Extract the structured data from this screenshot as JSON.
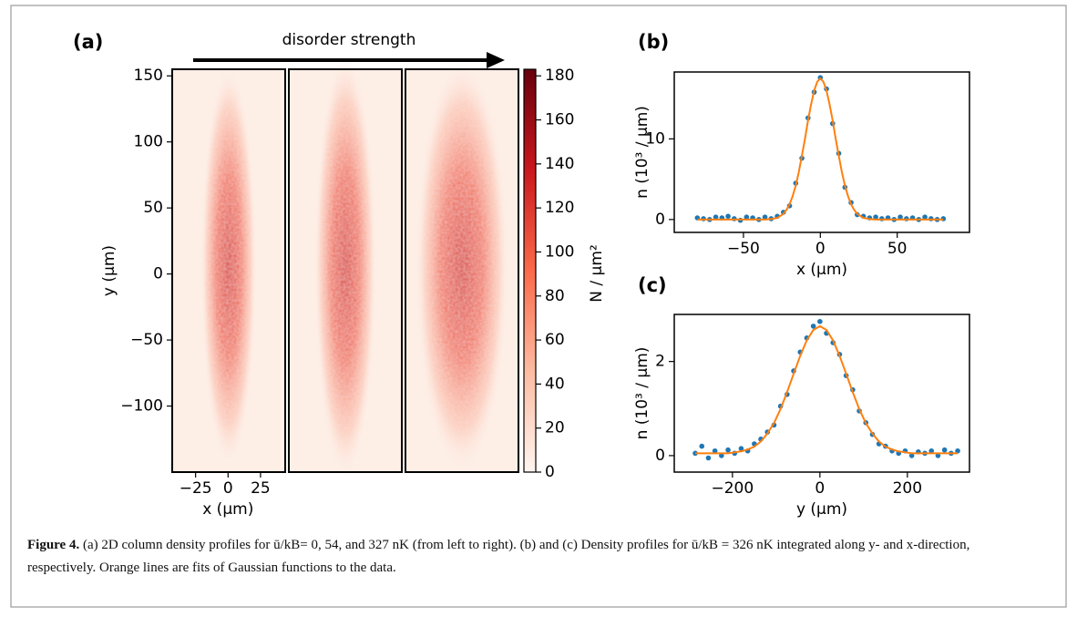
{
  "chart_data": [
    {
      "type": "heatmap",
      "panel_label": "(a)",
      "annotation": "disorder strength",
      "xlabel": "x (µm)",
      "ylabel": "y (µm)",
      "xlim": [
        -43,
        44
      ],
      "xticks": [
        {
          "value": -25,
          "label": "−25"
        },
        0,
        25
      ],
      "ylim": [
        -150,
        155
      ],
      "yticks": [
        150,
        100,
        50,
        0,
        {
          "value": -50,
          "label": "−50"
        },
        {
          "value": -100,
          "label": "−100"
        }
      ],
      "colorbar": {
        "label": "N / µm²",
        "lim": [
          0,
          183
        ],
        "ticks": [
          0,
          20,
          40,
          60,
          80,
          100,
          120,
          140,
          160,
          180
        ],
        "colors": [
          "#fff5f0",
          "#fcbba1",
          "#fb6a4a",
          "#cb181d",
          "#67000d"
        ]
      }
    },
    {
      "type": "scatter",
      "panel_label": "(b)",
      "xlabel": "x (µm)",
      "ylabel": "n (10³ / µm)",
      "xlim": [
        -95,
        97
      ],
      "xticks": [
        {
          "value": -50,
          "label": "−50"
        },
        0,
        50
      ],
      "ylim": [
        -1.6,
        18.3
      ],
      "yticks": [
        0,
        10
      ],
      "series": [
        {
          "style": "points",
          "color": "#1f77b4",
          "x": [
            -80,
            -76,
            -72,
            -68,
            -64,
            -60,
            -56,
            -52,
            -48,
            -44,
            -40,
            -36,
            -32,
            -28,
            -24,
            -20,
            -16,
            -12,
            -8,
            -4,
            0,
            4,
            8,
            12,
            16,
            20,
            24,
            28,
            32,
            36,
            40,
            44,
            48,
            52,
            56,
            60,
            64,
            68,
            72,
            76,
            80
          ],
          "values": [
            0.2,
            0.1,
            0.0,
            0.3,
            0.2,
            0.4,
            0.1,
            -0.1,
            0.3,
            0.2,
            0.0,
            0.3,
            0.1,
            0.4,
            0.9,
            1.7,
            4.5,
            7.6,
            12.6,
            15.8,
            17.6,
            16.2,
            11.9,
            8.2,
            4.0,
            2.1,
            0.6,
            0.4,
            0.2,
            0.3,
            0.1,
            0.2,
            0.0,
            0.3,
            0.1,
            0.2,
            0.0,
            0.3,
            0.1,
            0.0,
            0.1
          ]
        },
        {
          "style": "line",
          "color": "#ff7f0e",
          "x": [
            -80,
            -36,
            -32,
            -28,
            -24,
            -22,
            -20,
            -18,
            -16,
            -14,
            -12,
            -10,
            -8,
            -6,
            -4,
            -2,
            0,
            2,
            4,
            6,
            8,
            10,
            12,
            14,
            16,
            18,
            20,
            22,
            24,
            28,
            32,
            36,
            80
          ],
          "values": [
            0,
            0,
            0.05,
            0.2,
            0.7,
            1.2,
            1.9,
            2.9,
            4.2,
            5.9,
            7.9,
            10.0,
            12.3,
            14.3,
            16.0,
            17.1,
            17.5,
            17.1,
            16.0,
            14.3,
            12.3,
            10.0,
            7.9,
            5.9,
            4.2,
            2.9,
            1.9,
            1.2,
            0.7,
            0.2,
            0.05,
            0,
            0
          ]
        }
      ]
    },
    {
      "type": "scatter",
      "panel_label": "(c)",
      "xlabel": "y (µm)",
      "ylabel": "n (10³ / µm)",
      "xlim": [
        -333,
        342
      ],
      "xticks": [
        {
          "value": -200,
          "label": "−200"
        },
        0,
        200
      ],
      "ylim": [
        -0.35,
        3.0
      ],
      "yticks": [
        0,
        2
      ],
      "series": [
        {
          "style": "points",
          "color": "#1f77b4",
          "x": [
            -285,
            -270,
            -255,
            -240,
            -225,
            -210,
            -195,
            -180,
            -165,
            -150,
            -135,
            -120,
            -105,
            -90,
            -75,
            -60,
            -45,
            -30,
            -15,
            0,
            15,
            30,
            45,
            60,
            75,
            90,
            105,
            120,
            135,
            150,
            165,
            180,
            195,
            210,
            225,
            240,
            255,
            270,
            285,
            300,
            315
          ],
          "values": [
            0.05,
            0.2,
            -0.05,
            0.1,
            0.0,
            0.12,
            0.05,
            0.15,
            0.1,
            0.25,
            0.35,
            0.5,
            0.65,
            1.05,
            1.3,
            1.8,
            2.2,
            2.5,
            2.75,
            2.85,
            2.6,
            2.4,
            2.15,
            1.7,
            1.4,
            0.95,
            0.7,
            0.45,
            0.25,
            0.2,
            0.1,
            0.05,
            0.1,
            0.0,
            0.08,
            0.05,
            0.1,
            0.0,
            0.12,
            0.05,
            0.1
          ]
        },
        {
          "style": "line",
          "color": "#ff7f0e",
          "x": [
            -285,
            -210,
            -195,
            -180,
            -165,
            -150,
            -135,
            -120,
            -105,
            -90,
            -75,
            -60,
            -45,
            -30,
            -15,
            0,
            15,
            30,
            45,
            60,
            75,
            90,
            105,
            120,
            135,
            150,
            165,
            180,
            195,
            210,
            315
          ],
          "values": [
            0.05,
            0.05,
            0.07,
            0.09,
            0.13,
            0.19,
            0.3,
            0.47,
            0.69,
            0.99,
            1.35,
            1.74,
            2.12,
            2.45,
            2.67,
            2.75,
            2.67,
            2.45,
            2.12,
            1.74,
            1.35,
            0.99,
            0.69,
            0.47,
            0.3,
            0.19,
            0.13,
            0.09,
            0.07,
            0.05,
            0.05
          ]
        }
      ]
    }
  ],
  "caption": {
    "label": "Figure 4.",
    "text": "(a) 2D column density profiles for ū/kB= 0, 54, and 327 nK (from left to right). (b) and (c) Density profiles for ū/kB = 326 nK integrated along y- and x-direction, respectively. Orange lines are fits of Gaussian functions to the data."
  }
}
